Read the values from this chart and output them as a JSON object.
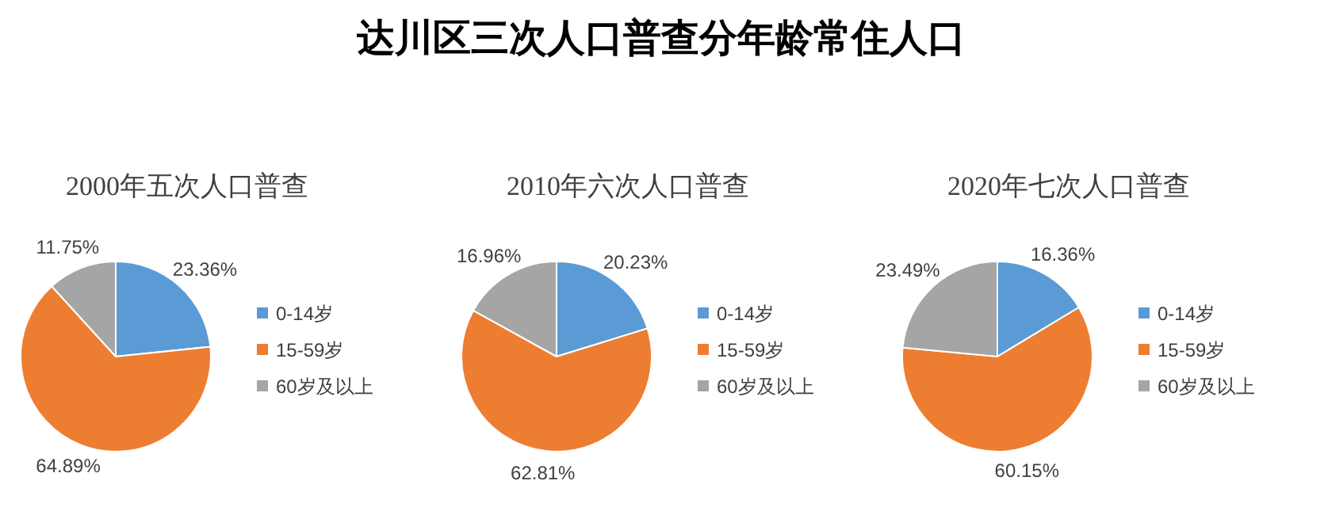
{
  "chart_data": [
    {
      "type": "pie",
      "title": "2000年五次人口普查",
      "annotations": [
        "达川区三次人口普查分年龄常住人口"
      ],
      "categories": [
        "0-14岁",
        "15-59岁",
        "60岁及以上"
      ],
      "values": [
        23.36,
        64.89,
        11.75
      ],
      "value_labels": [
        "23.36%",
        "64.89%",
        "11.75%"
      ],
      "colors": [
        "#5b9bd5",
        "#ed7d31",
        "#a5a5a5"
      ],
      "legend": "right"
    },
    {
      "type": "pie",
      "title": "2010年六次人口普查",
      "categories": [
        "0-14岁",
        "15-59岁",
        "60岁及以上"
      ],
      "values": [
        20.23,
        62.81,
        16.96
      ],
      "value_labels": [
        "20.23%",
        "62.81%",
        "16.96%"
      ],
      "colors": [
        "#5b9bd5",
        "#ed7d31",
        "#a5a5a5"
      ],
      "legend": "right"
    },
    {
      "type": "pie",
      "title": "2020年七次人口普查",
      "categories": [
        "0-14岁",
        "15-59岁",
        "60岁及以上"
      ],
      "values": [
        16.36,
        60.15,
        23.49
      ],
      "value_labels": [
        "16.36%",
        "60.15%",
        "23.49%"
      ],
      "colors": [
        "#5b9bd5",
        "#ed7d31",
        "#a5a5a5"
      ],
      "legend": "right"
    }
  ]
}
